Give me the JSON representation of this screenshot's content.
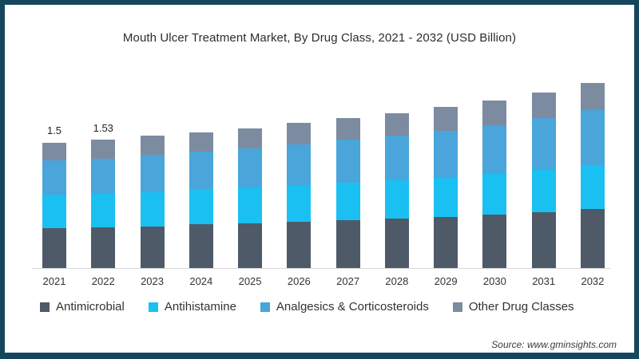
{
  "frame": {
    "border_color": "#15465e",
    "background": "#ffffff"
  },
  "title": "Mouth Ulcer Treatment Market, By Drug Class, 2021 - 2032 (USD Billion)",
  "source": "Source: www.gminsights.com",
  "chart_data": {
    "type": "bar",
    "stacked": true,
    "title": "Mouth Ulcer Treatment Market, By Drug Class, 2021 - 2032 (USD Billion)",
    "xlabel": "",
    "ylabel": "",
    "ylim": [
      0,
      2.4
    ],
    "grid": false,
    "legend_position": "bottom",
    "categories": [
      "2021",
      "2022",
      "2023",
      "2024",
      "2025",
      "2026",
      "2027",
      "2028",
      "2029",
      "2030",
      "2031",
      "2032"
    ],
    "series": [
      {
        "name": "Antimicrobial",
        "color": "#4e5a68",
        "values": [
          0.48,
          0.49,
          0.5,
          0.52,
          0.53,
          0.55,
          0.57,
          0.59,
          0.61,
          0.64,
          0.67,
          0.71
        ]
      },
      {
        "name": "Antihistamine",
        "color": "#1ac0f1",
        "values": [
          0.4,
          0.4,
          0.41,
          0.42,
          0.43,
          0.44,
          0.45,
          0.46,
          0.47,
          0.48,
          0.5,
          0.52
        ]
      },
      {
        "name": "Analgesics & Corticosteroids",
        "color": "#49a5da",
        "values": [
          0.41,
          0.42,
          0.44,
          0.45,
          0.47,
          0.49,
          0.51,
          0.53,
          0.56,
          0.59,
          0.62,
          0.66
        ]
      },
      {
        "name": "Other Drug Classes",
        "color": "#7d8ba1",
        "values": [
          0.21,
          0.22,
          0.23,
          0.23,
          0.24,
          0.25,
          0.26,
          0.27,
          0.29,
          0.29,
          0.31,
          0.32
        ]
      }
    ],
    "totals": [
      1.5,
      1.53,
      1.58,
      1.62,
      1.67,
      1.73,
      1.79,
      1.85,
      1.93,
      2.0,
      2.1,
      2.21
    ],
    "point_labels": [
      "1.5",
      "1.53",
      "",
      "",
      "",
      "",
      "",
      "",
      "",
      "",
      "",
      ""
    ],
    "text_color": "#333333",
    "axis_line_color": "#d9d9d9"
  }
}
